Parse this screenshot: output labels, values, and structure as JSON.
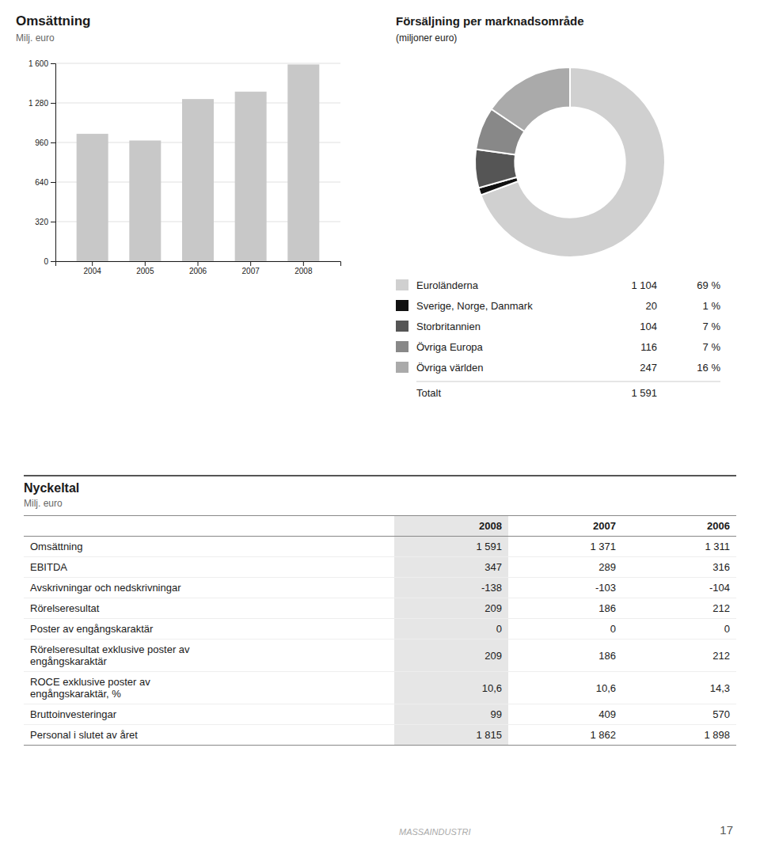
{
  "chart_data": [
    {
      "type": "bar",
      "title": "Omsättning",
      "subtitle": "Milj. euro",
      "categories": [
        "2004",
        "2005",
        "2006",
        "2007",
        "2008"
      ],
      "values": [
        1030,
        976,
        1311,
        1371,
        1591
      ],
      "color": "#c8c8c8",
      "ylim": [
        0,
        1600
      ],
      "yticks": [
        0,
        320,
        640,
        960,
        {
          "value": 1280,
          "label": "1 280"
        },
        {
          "value": 1600,
          "label": "1 600"
        }
      ],
      "grid": true
    },
    {
      "type": "pie",
      "title": "Försäljning per marknadsområde",
      "subtitle": "(miljoner euro)",
      "categories": [
        "Euroländerna",
        "Sverige, Norge, Danmark",
        "Storbritannien",
        "Övriga Europa",
        "Övriga världen"
      ],
      "values": [
        1104,
        20,
        104,
        116,
        247
      ],
      "value_labels": [
        "1 104",
        "20",
        "104",
        "116",
        "247"
      ],
      "percents": [
        {
          "value": 69,
          "label": "69 %"
        },
        {
          "value": 1,
          "label": "1 %"
        },
        {
          "value": 7,
          "label": "7 %"
        },
        {
          "value": 7,
          "label": "7 %"
        },
        {
          "value": 16,
          "label": "16 %"
        }
      ],
      "colors": [
        "#d0d0d0",
        "#111111",
        "#555555",
        "#888888",
        "#aaaaaa"
      ],
      "total_label": "Totalt",
      "total": {
        "value": 1591,
        "label": "1 591"
      },
      "legend": "bottom"
    },
    {
      "type": "table",
      "title": "Nyckeltal",
      "subtitle": "Milj. euro",
      "columns": [
        "2008",
        "2007",
        "2006"
      ],
      "rows": [
        [
          "Omsättning",
          "1 591",
          "1 371",
          "1 311"
        ],
        [
          "EBITDA",
          "347",
          "289",
          "316"
        ],
        [
          "Avskrivningar och nedskrivningar",
          "-138",
          "-103",
          "-104"
        ],
        [
          "Rörelseresultat",
          "209",
          "186",
          "212"
        ],
        [
          "Poster av engångskaraktär",
          "0",
          "0",
          "0"
        ],
        [
          "Rörelseresultat exklusive poster av\nengångskaraktär",
          "209",
          "186",
          "212"
        ],
        [
          "ROCE exklusive poster av\nengångskaraktär, %",
          "10,6",
          "10,6",
          "14,3"
        ],
        [
          "Bruttoinvesteringar",
          "99",
          "409",
          "570"
        ],
        [
          "Personal i slutet av året",
          "1 815",
          "1 862",
          "1 898"
        ]
      ]
    }
  ],
  "footer": "MASSAINDUSTRI",
  "page_number": 17
}
